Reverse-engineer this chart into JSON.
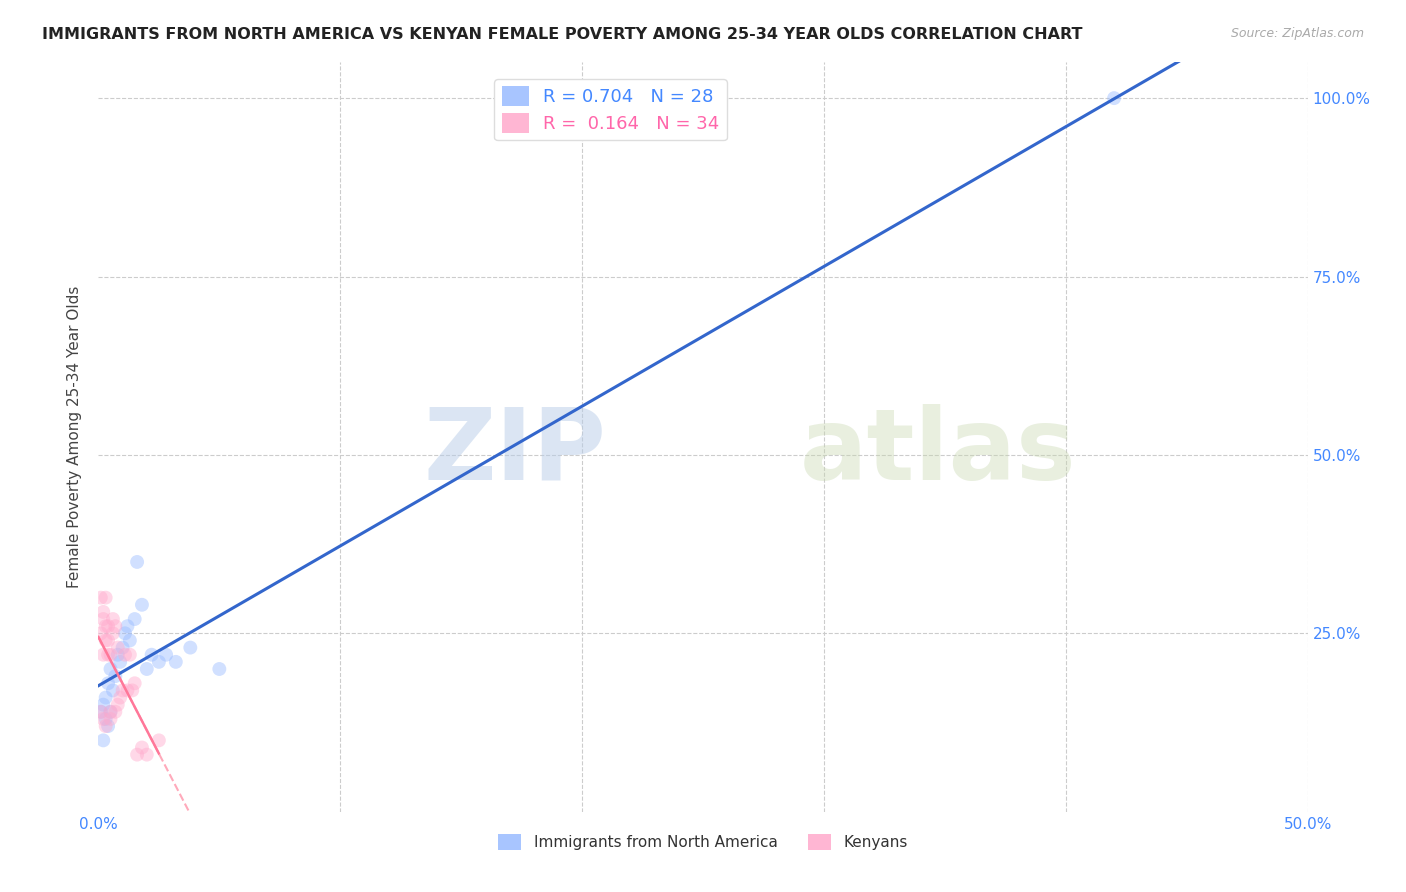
{
  "title": "IMMIGRANTS FROM NORTH AMERICA VS KENYAN FEMALE POVERTY AMONG 25-34 YEAR OLDS CORRELATION CHART",
  "source": "Source: ZipAtlas.com",
  "ylabel": "Female Poverty Among 25-34 Year Olds",
  "x_tick_labels": [
    "0.0%",
    "",
    "",
    "",
    "",
    "50.0%"
  ],
  "y_tick_labels_right": [
    "100.0%",
    "75.0%",
    "50.0%",
    "25.0%",
    ""
  ],
  "blue_scatter_x": [
    0.001,
    0.002,
    0.002,
    0.003,
    0.003,
    0.004,
    0.004,
    0.005,
    0.005,
    0.006,
    0.007,
    0.008,
    0.009,
    0.01,
    0.011,
    0.012,
    0.013,
    0.015,
    0.016,
    0.018,
    0.02,
    0.022,
    0.025,
    0.028,
    0.032,
    0.038,
    0.05,
    0.42
  ],
  "blue_scatter_y": [
    0.14,
    0.1,
    0.15,
    0.13,
    0.16,
    0.12,
    0.18,
    0.14,
    0.2,
    0.17,
    0.19,
    0.22,
    0.21,
    0.23,
    0.25,
    0.26,
    0.24,
    0.27,
    0.35,
    0.29,
    0.2,
    0.22,
    0.21,
    0.22,
    0.21,
    0.23,
    0.2,
    1.0
  ],
  "pink_scatter_x": [
    0.001,
    0.001,
    0.001,
    0.002,
    0.002,
    0.002,
    0.002,
    0.003,
    0.003,
    0.003,
    0.003,
    0.004,
    0.004,
    0.004,
    0.005,
    0.005,
    0.005,
    0.006,
    0.006,
    0.007,
    0.007,
    0.008,
    0.008,
    0.009,
    0.01,
    0.011,
    0.012,
    0.013,
    0.014,
    0.015,
    0.016,
    0.018,
    0.02,
    0.025
  ],
  "pink_scatter_y": [
    0.14,
    0.25,
    0.3,
    0.13,
    0.22,
    0.27,
    0.28,
    0.12,
    0.24,
    0.26,
    0.3,
    0.22,
    0.24,
    0.26,
    0.13,
    0.14,
    0.22,
    0.25,
    0.27,
    0.14,
    0.26,
    0.15,
    0.23,
    0.16,
    0.17,
    0.22,
    0.17,
    0.22,
    0.17,
    0.18,
    0.08,
    0.09,
    0.08,
    0.1
  ],
  "scatter_size": 100,
  "scatter_alpha": 0.45,
  "blue_color": "#99bbff",
  "pink_color": "#ffaacc",
  "blue_line_color": "#3366cc",
  "pink_line_color": "#ff7799",
  "pink_line_dashed_color": "#ffaabb",
  "grid_color": "#cccccc",
  "watermark_zip": "ZIP",
  "watermark_atlas": "atlas",
  "background_color": "#ffffff",
  "xlim": [
    0.0,
    0.5
  ],
  "ylim": [
    0.0,
    1.05
  ],
  "legend_upper_blue_label": "R = 0.704   N = 28",
  "legend_upper_pink_label": "R =  0.164   N = 34",
  "legend_bottom_blue_label": "Immigrants from North America",
  "legend_bottom_pink_label": "Kenyans"
}
